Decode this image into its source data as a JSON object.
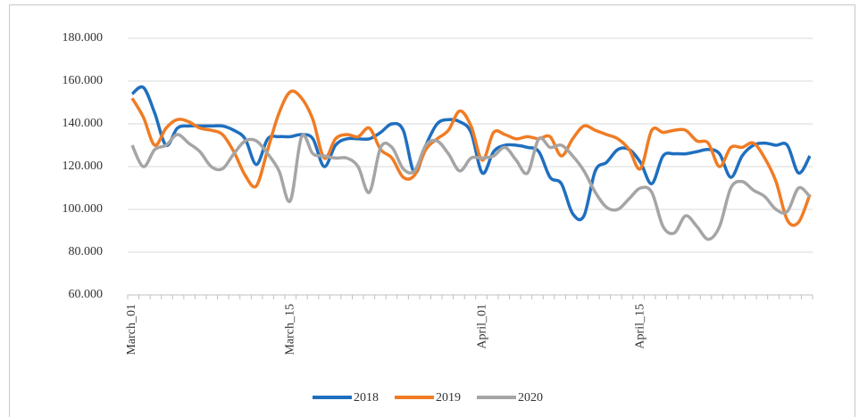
{
  "chart_data": {
    "type": "line",
    "categories": [
      "March_01",
      null,
      null,
      null,
      null,
      null,
      null,
      null,
      null,
      null,
      null,
      null,
      null,
      null,
      "March_15",
      null,
      null,
      null,
      null,
      null,
      null,
      null,
      null,
      null,
      null,
      null,
      null,
      null,
      null,
      null,
      null,
      "April_01",
      null,
      null,
      null,
      null,
      null,
      null,
      null,
      null,
      null,
      null,
      null,
      null,
      null,
      "April_15",
      null,
      null,
      null,
      null,
      null,
      null,
      null,
      null,
      null,
      null,
      null,
      null,
      null,
      null,
      null
    ],
    "series": [
      {
        "name": "2018",
        "color": "#1f6fbf",
        "values": [
          154,
          157,
          145,
          130,
          138,
          139,
          139,
          139,
          139,
          137,
          133,
          121,
          133,
          134,
          134,
          135,
          133,
          120,
          130,
          133,
          133,
          133,
          136,
          140,
          137,
          117,
          130,
          140,
          142,
          141,
          136,
          117,
          127,
          130,
          130,
          129,
          127,
          115,
          112,
          98,
          97,
          118,
          122,
          128,
          128,
          122,
          112,
          125,
          126,
          126,
          127,
          128,
          126,
          115,
          125,
          130,
          131,
          130,
          130,
          117,
          125
        ]
      },
      {
        "name": "2019",
        "color": "#f07c24",
        "values": [
          152,
          143,
          130,
          138,
          142,
          141,
          138,
          137,
          135,
          127,
          116,
          111,
          128,
          145,
          155,
          152,
          142,
          124,
          133,
          135,
          134,
          138,
          128,
          124,
          115,
          116,
          128,
          133,
          137,
          146,
          139,
          123,
          136,
          135,
          133,
          134,
          133,
          134,
          125,
          133,
          139,
          137,
          135,
          133,
          128,
          119,
          137,
          136,
          137,
          137,
          132,
          131,
          120,
          129,
          129,
          131,
          124,
          113,
          95,
          94,
          107
        ]
      },
      {
        "name": "2020",
        "color": "#a5a5a5",
        "values": [
          130,
          120,
          128,
          130,
          135,
          131,
          127,
          120,
          119,
          126,
          132,
          132,
          126,
          118,
          104,
          134,
          126,
          125,
          124,
          124,
          120,
          108,
          129,
          129,
          119,
          118,
          130,
          132,
          126,
          118,
          124,
          124,
          125,
          129,
          123,
          117,
          133,
          129,
          130,
          125,
          118,
          108,
          101,
          100,
          105,
          110,
          108,
          92,
          89,
          97,
          92,
          86,
          92,
          110,
          113,
          109,
          106,
          100,
          99,
          110,
          106
        ]
      }
    ],
    "ylim": [
      60,
      180
    ],
    "yticks": [
      {
        "value": 60,
        "label": "60.000"
      },
      {
        "value": 80,
        "label": "80.000"
      },
      {
        "value": 100,
        "label": "100.000"
      },
      {
        "value": 120,
        "label": "120.000"
      },
      {
        "value": 140,
        "label": "140.000"
      },
      {
        "value": 160,
        "label": "160.000"
      },
      {
        "value": 180,
        "label": "180.000"
      }
    ],
    "grid": true,
    "legend": "bottom"
  }
}
